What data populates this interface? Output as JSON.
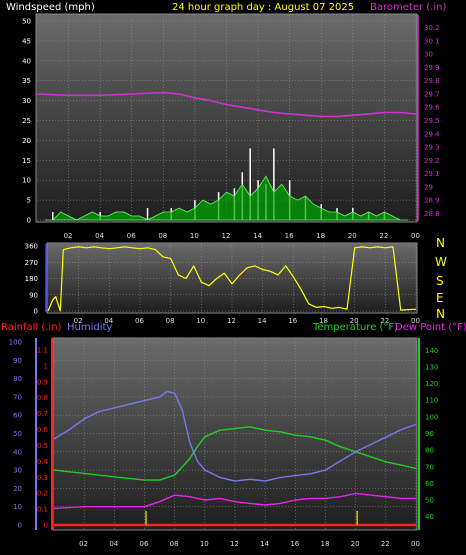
{
  "header": {
    "left_title": "Windspeed (mph)",
    "center_title": "24 hour graph day : August 07 2025",
    "right_title": "Barometer (.in)"
  },
  "bottom_titles": {
    "rainfall": "Rainfall (.in)",
    "humidity": "Humidity",
    "temperature": "Temperature (°F)",
    "dewpoint": "Dew Point (°F)"
  },
  "compass": [
    "N",
    "W",
    "S",
    "E",
    "N"
  ],
  "colors": {
    "wind": "#ffffff",
    "gust_fill": "#00aa00",
    "barometer": "#cc33cc",
    "direction": "#ffff00",
    "temperature": "#22cc22",
    "dewpoint": "#ee22ee",
    "humidity": "#7777ee",
    "rain": "#ff2222",
    "rain_events": "#cccc00"
  },
  "chart_data": [
    {
      "type": "line",
      "panel": "wind_barometer",
      "x_ticks": [
        "02",
        "04",
        "06",
        "08",
        "10",
        "12",
        "14",
        "16",
        "18",
        "20",
        "22",
        "00"
      ],
      "left_axis": {
        "ticks": [
          "0",
          "5",
          "10",
          "15",
          "20",
          "25",
          "30",
          "35",
          "40",
          "45",
          "50"
        ],
        "ylim": [
          0,
          50
        ]
      },
      "right_axis": {
        "ticks": [
          "28.8",
          "28.9",
          "29",
          "29.1",
          "29.2",
          "29.3",
          "29.4",
          "29.5",
          "29.6",
          "29.7",
          "29.8",
          "29.9",
          "30",
          "30.1",
          "30.2"
        ],
        "ylim": [
          28.75,
          30.25
        ]
      },
      "series": [
        {
          "name": "Barometer (.in)",
          "axis": "right",
          "x": [
            0,
            2,
            4,
            6,
            8,
            9,
            10,
            11,
            12,
            13,
            14,
            15,
            16,
            17,
            18,
            19,
            20,
            21,
            22,
            23,
            24
          ],
          "values": [
            29.7,
            29.69,
            29.69,
            29.7,
            29.71,
            29.7,
            29.67,
            29.65,
            29.62,
            29.6,
            29.58,
            29.56,
            29.55,
            29.54,
            29.53,
            29.53,
            29.54,
            29.55,
            29.56,
            29.56,
            29.55
          ]
        },
        {
          "name": "Windspeed (mph)",
          "axis": "left",
          "x": [
            0.5,
            1,
            1.5,
            2,
            2.5,
            3,
            3.5,
            4,
            4.5,
            5,
            5.5,
            6,
            6.5,
            7,
            7.5,
            8,
            8.5,
            9,
            9.5,
            10,
            10.5,
            11,
            11.5,
            12,
            12.5,
            13,
            13.5,
            14,
            14.5,
            15,
            15.5,
            16,
            16.5,
            17,
            17.5,
            18,
            18.5,
            19,
            19.5,
            20,
            20.5,
            21,
            21.5,
            22,
            22.5,
            23,
            23.5
          ],
          "values": [
            0,
            0,
            2,
            1,
            0,
            1,
            2,
            1,
            1,
            2,
            2,
            1,
            1,
            0,
            1,
            2,
            2,
            3,
            2,
            3,
            5,
            4,
            5,
            7,
            6,
            9,
            6,
            8,
            11,
            7,
            9,
            6,
            5,
            6,
            4,
            3,
            2,
            2,
            1,
            2,
            1,
            2,
            1,
            2,
            1,
            0,
            0
          ]
        },
        {
          "name": "Wind Gust",
          "axis": "left",
          "x": [
            1,
            4,
            7,
            8.5,
            10,
            11.5,
            12.5,
            13,
            13.5,
            14,
            14.5,
            15,
            16,
            17,
            18,
            19,
            20,
            21,
            22
          ],
          "values": [
            2,
            2,
            3,
            3,
            5,
            7,
            8,
            12,
            18,
            10,
            9,
            18,
            10,
            6,
            4,
            3,
            3,
            2,
            2
          ]
        }
      ]
    },
    {
      "type": "scatter",
      "panel": "wind_direction",
      "x_ticks": [
        "02",
        "04",
        "06",
        "08",
        "10",
        "12",
        "14",
        "16",
        "18",
        "20",
        "22",
        "00"
      ],
      "left_axis": {
        "ticks": [
          "0",
          "90",
          "180",
          "270",
          "360"
        ],
        "ylim": [
          0,
          360
        ]
      },
      "series": [
        {
          "name": "Wind Direction",
          "x": [
            0,
            0.3,
            0.5,
            0.8,
            1,
            1.5,
            2,
            2.5,
            3,
            3.5,
            4,
            4.5,
            5,
            5.5,
            6,
            6.5,
            7,
            7.5,
            8,
            8.5,
            9,
            9.5,
            10,
            10.5,
            11,
            11.5,
            12,
            12.5,
            13,
            13.5,
            14,
            14.5,
            15,
            15.5,
            16,
            16.5,
            17,
            17.5,
            18,
            18.5,
            19,
            19.5,
            20,
            20.5,
            21,
            21.5,
            22,
            22.5,
            23,
            23.5,
            24
          ],
          "values": [
            0,
            60,
            80,
            0,
            340,
            350,
            355,
            350,
            355,
            350,
            345,
            350,
            355,
            350,
            345,
            350,
            340,
            300,
            290,
            200,
            180,
            250,
            160,
            140,
            180,
            210,
            150,
            200,
            240,
            250,
            230,
            220,
            200,
            250,
            190,
            120,
            40,
            20,
            25,
            15,
            20,
            10,
            350,
            355,
            350,
            355,
            350,
            355,
            5,
            8,
            10
          ]
        }
      ]
    },
    {
      "type": "line",
      "panel": "temp_humidity_rain",
      "x_ticks": [
        "02",
        "04",
        "06",
        "08",
        "10",
        "12",
        "14",
        "16",
        "18",
        "20",
        "22",
        "00"
      ],
      "humidity_axis": {
        "ticks": [
          "0",
          "10",
          "20",
          "30",
          "40",
          "50",
          "60",
          "70",
          "80",
          "90",
          "100"
        ],
        "ylim": [
          0,
          100
        ]
      },
      "rain_axis": {
        "ticks": [
          "0",
          "0.1",
          "0.2",
          "0.3",
          "0.4",
          "0.5",
          "0.6",
          "0.7",
          "0.8",
          "0.9",
          "1",
          "1.1"
        ],
        "ylim": [
          0,
          1.15
        ]
      },
      "temp_axis": {
        "ticks": [
          "40",
          "50",
          "60",
          "70",
          "80",
          "90",
          "100",
          "110",
          "120",
          "130",
          "140"
        ],
        "ylim": [
          35,
          145
        ]
      },
      "series": [
        {
          "name": "Humidity",
          "axis": "humidity",
          "x": [
            0,
            1,
            2,
            3,
            4,
            5,
            6,
            7,
            7.5,
            8,
            8.5,
            9,
            9.5,
            10,
            11,
            12,
            13,
            14,
            15,
            16,
            17,
            18,
            19,
            20,
            21,
            22,
            23,
            24
          ],
          "values": [
            47,
            52,
            58,
            62,
            64,
            66,
            68,
            70,
            73,
            72,
            63,
            45,
            35,
            30,
            26,
            24,
            25,
            24,
            26,
            27,
            28,
            30,
            35,
            40,
            44,
            48,
            52,
            55
          ]
        },
        {
          "name": "Temperature (°F)",
          "axis": "temp",
          "x": [
            0,
            2,
            4,
            6,
            7,
            8,
            9,
            9.5,
            10,
            11,
            12,
            13,
            14,
            15,
            16,
            17,
            18,
            19,
            20,
            21,
            22,
            23,
            24
          ],
          "values": [
            68,
            66,
            64,
            62,
            62,
            65,
            75,
            82,
            88,
            92,
            93,
            94,
            92,
            91,
            89,
            88,
            86,
            82,
            79,
            76,
            73,
            71,
            69
          ]
        },
        {
          "name": "Dew Point (°F)",
          "axis": "temp",
          "x": [
            0,
            2,
            4,
            6,
            7,
            8,
            9,
            10,
            11,
            12,
            13,
            14,
            15,
            16,
            17,
            18,
            19,
            20,
            21,
            22,
            23,
            24
          ],
          "values": [
            45,
            46,
            46,
            46,
            49,
            53,
            52,
            50,
            51,
            49,
            48,
            47,
            48,
            50,
            51,
            51,
            52,
            54,
            53,
            52,
            51,
            51
          ]
        },
        {
          "name": "Rainfall (.in)",
          "axis": "rain",
          "x": [
            0,
            24
          ],
          "values": [
            0.0,
            0.0
          ]
        }
      ],
      "rain_events_x": [
        6.1,
        20.1
      ]
    }
  ]
}
